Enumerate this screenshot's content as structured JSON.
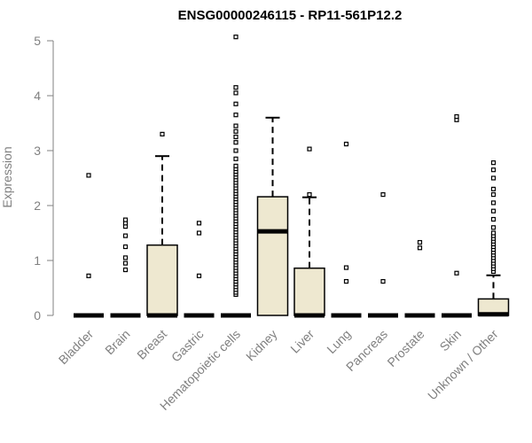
{
  "chart_data": {
    "type": "boxplot",
    "title": "ENSG00000246115 - RP11-561P12.2",
    "xlabel": "",
    "ylabel": "Expression",
    "ylim": [
      0,
      5.2
    ],
    "yticks": [
      0,
      1,
      2,
      3,
      4,
      5
    ],
    "grid": false,
    "colors": {
      "box_fill": "#EEE8D0",
      "box_stroke": "#000000",
      "axis": "#808080",
      "text": "#808080"
    },
    "categories": [
      "Bladder",
      "Brain",
      "Breast",
      "Gastric",
      "Hematopoietic cells",
      "Kidney",
      "Liver",
      "Lung",
      "Pancreas",
      "Prostate",
      "Skin",
      "Unknown / Other"
    ],
    "boxes": [
      {
        "category": "Bladder",
        "q1": 0,
        "median": 0,
        "q3": 0,
        "whisker_low": 0,
        "whisker_high": 0,
        "outliers": [
          0.72,
          2.55
        ]
      },
      {
        "category": "Brain",
        "q1": 0,
        "median": 0,
        "q3": 0,
        "whisker_low": 0,
        "whisker_high": 0,
        "outliers": [
          0.83,
          0.95,
          1.05,
          1.25,
          1.45,
          1.62,
          1.68,
          1.74
        ]
      },
      {
        "category": "Breast",
        "q1": 0,
        "median": 0,
        "q3": 1.28,
        "whisker_low": 0,
        "whisker_high": 2.9,
        "outliers": [
          3.3
        ]
      },
      {
        "category": "Gastric",
        "q1": 0,
        "median": 0,
        "q3": 0,
        "whisker_low": 0,
        "whisker_high": 0,
        "outliers": [
          0.72,
          1.5,
          1.68
        ]
      },
      {
        "category": "Hematopoietic cells",
        "q1": 0,
        "median": 0,
        "q3": 0,
        "whisker_low": 0,
        "whisker_high": 0,
        "outliers": [
          0.38,
          0.42,
          0.47,
          0.52,
          0.57,
          0.62,
          0.67,
          0.72,
          0.77,
          0.82,
          0.87,
          0.92,
          0.97,
          1.02,
          1.07,
          1.12,
          1.17,
          1.22,
          1.27,
          1.32,
          1.37,
          1.42,
          1.47,
          1.52,
          1.57,
          1.62,
          1.67,
          1.72,
          1.77,
          1.82,
          1.87,
          1.92,
          1.97,
          2.02,
          2.07,
          2.12,
          2.17,
          2.22,
          2.27,
          2.32,
          2.37,
          2.42,
          2.47,
          2.52,
          2.57,
          2.62,
          2.67,
          2.72,
          2.85,
          3.0,
          3.15,
          3.25,
          3.35,
          3.45,
          3.65,
          3.85,
          4.05,
          4.15,
          5.07
        ]
      },
      {
        "category": "Kidney",
        "q1": 0,
        "median": 1.53,
        "q3": 2.16,
        "whisker_low": 0,
        "whisker_high": 3.6,
        "outliers": []
      },
      {
        "category": "Liver",
        "q1": 0,
        "median": 0,
        "q3": 0.86,
        "whisker_low": 0,
        "whisker_high": 2.15,
        "outliers": [
          2.2,
          3.03
        ]
      },
      {
        "category": "Lung",
        "q1": 0,
        "median": 0,
        "q3": 0,
        "whisker_low": 0,
        "whisker_high": 0,
        "outliers": [
          0.62,
          0.87,
          3.12
        ]
      },
      {
        "category": "Pancreas",
        "q1": 0,
        "median": 0,
        "q3": 0,
        "whisker_low": 0,
        "whisker_high": 0,
        "outliers": [
          0.62,
          2.2
        ]
      },
      {
        "category": "Prostate",
        "q1": 0,
        "median": 0,
        "q3": 0,
        "whisker_low": 0,
        "whisker_high": 0,
        "outliers": [
          1.23,
          1.33
        ]
      },
      {
        "category": "Skin",
        "q1": 0,
        "median": 0,
        "q3": 0,
        "whisker_low": 0,
        "whisker_high": 0,
        "outliers": [
          0.77,
          3.56,
          3.62
        ]
      },
      {
        "category": "Unknown / Other",
        "q1": 0,
        "median": 0.02,
        "q3": 0.3,
        "whisker_low": 0,
        "whisker_high": 0.73,
        "outliers": [
          0.8,
          0.85,
          0.9,
          0.95,
          1.0,
          1.05,
          1.1,
          1.15,
          1.2,
          1.25,
          1.3,
          1.35,
          1.4,
          1.45,
          1.5,
          1.6,
          1.75,
          1.9,
          2.05,
          2.2,
          2.3,
          2.5,
          2.65,
          2.78
        ]
      }
    ]
  }
}
